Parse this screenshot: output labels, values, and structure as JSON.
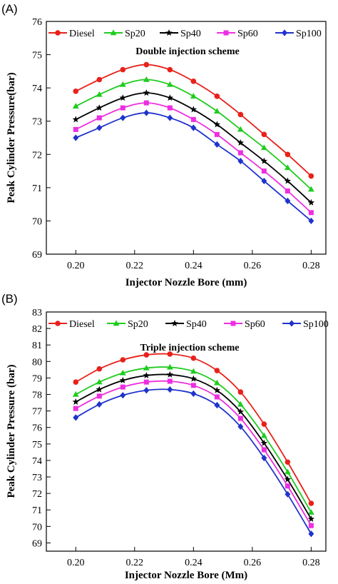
{
  "chart_data": [
    {
      "type": "line",
      "panel_label": "(A)",
      "title": "Double injection scheme",
      "xlabel": "Injector Nozzle Bore (mm)",
      "ylabel": "Peak Cylinder Pressure(bar)",
      "xlim": [
        0.19,
        0.285
      ],
      "ylim": [
        69,
        76
      ],
      "xticks": [
        "0.20",
        "0.22",
        "0.24",
        "0.26",
        "0.28"
      ],
      "yticks": [
        "69",
        "70",
        "71",
        "72",
        "73",
        "74",
        "75",
        "76"
      ],
      "legend_position": "top",
      "x": [
        0.2,
        0.208,
        0.216,
        0.224,
        0.232,
        0.24,
        0.248,
        0.256,
        0.264,
        0.272,
        0.28
      ],
      "series": [
        {
          "name": "Diesel",
          "color": "#e8211b",
          "marker": "circle",
          "values": [
            73.9,
            74.25,
            74.55,
            74.7,
            74.55,
            74.2,
            73.75,
            73.2,
            72.6,
            72.0,
            71.35
          ]
        },
        {
          "name": "Sp20",
          "color": "#1fcc1f",
          "marker": "triangle",
          "values": [
            73.45,
            73.8,
            74.1,
            74.25,
            74.1,
            73.75,
            73.3,
            72.75,
            72.2,
            71.6,
            70.95
          ]
        },
        {
          "name": "Sp40",
          "color": "#000000",
          "marker": "star",
          "values": [
            73.05,
            73.4,
            73.7,
            73.85,
            73.7,
            73.35,
            72.9,
            72.35,
            71.8,
            71.2,
            70.55
          ]
        },
        {
          "name": "Sp60",
          "color": "#ee2ee0",
          "marker": "square",
          "values": [
            72.75,
            73.1,
            73.4,
            73.55,
            73.4,
            73.05,
            72.6,
            72.05,
            71.5,
            70.9,
            70.25
          ]
        },
        {
          "name": "Sp100",
          "color": "#1f33cc",
          "marker": "diamond",
          "values": [
            72.5,
            72.8,
            73.1,
            73.25,
            73.1,
            72.8,
            72.3,
            71.8,
            71.2,
            70.6,
            70.0
          ]
        }
      ]
    },
    {
      "type": "line",
      "panel_label": "(B)",
      "title": "Triple injection scheme",
      "xlabel": "Injector Nozzle Bore (Mm)",
      "ylabel": "Peak Cylinder Pressure (bar)",
      "xlim": [
        0.19,
        0.285
      ],
      "ylim": [
        68.5,
        83
      ],
      "xticks": [
        "0.20",
        "0.22",
        "0.24",
        "0.26",
        "0.28"
      ],
      "yticks": [
        "69",
        "70",
        "71",
        "72",
        "73",
        "74",
        "75",
        "76",
        "77",
        "78",
        "79",
        "80",
        "81",
        "82",
        "83"
      ],
      "legend_position": "top",
      "x": [
        0.2,
        0.208,
        0.216,
        0.224,
        0.232,
        0.24,
        0.248,
        0.256,
        0.264,
        0.272,
        0.28
      ],
      "series": [
        {
          "name": "Diesel",
          "color": "#e8211b",
          "marker": "circle",
          "values": [
            78.75,
            79.55,
            80.1,
            80.4,
            80.45,
            80.2,
            79.45,
            78.15,
            76.2,
            73.9,
            71.4
          ]
        },
        {
          "name": "Sp20",
          "color": "#1fcc1f",
          "marker": "triangle",
          "values": [
            78.0,
            78.75,
            79.3,
            79.6,
            79.65,
            79.4,
            78.7,
            77.4,
            75.5,
            73.3,
            70.85
          ]
        },
        {
          "name": "Sp40",
          "color": "#000000",
          "marker": "star",
          "values": [
            77.55,
            78.3,
            78.85,
            79.15,
            79.2,
            78.95,
            78.25,
            76.95,
            75.05,
            72.85,
            70.45
          ]
        },
        {
          "name": "Sp60",
          "color": "#ee2ee0",
          "marker": "square",
          "values": [
            77.15,
            77.9,
            78.45,
            78.75,
            78.8,
            78.55,
            77.85,
            76.55,
            74.65,
            72.45,
            70.05
          ]
        },
        {
          "name": "Sp100",
          "color": "#1f33cc",
          "marker": "diamond",
          "values": [
            76.6,
            77.4,
            77.95,
            78.25,
            78.3,
            78.05,
            77.35,
            76.05,
            74.15,
            71.95,
            69.55
          ]
        }
      ]
    }
  ]
}
